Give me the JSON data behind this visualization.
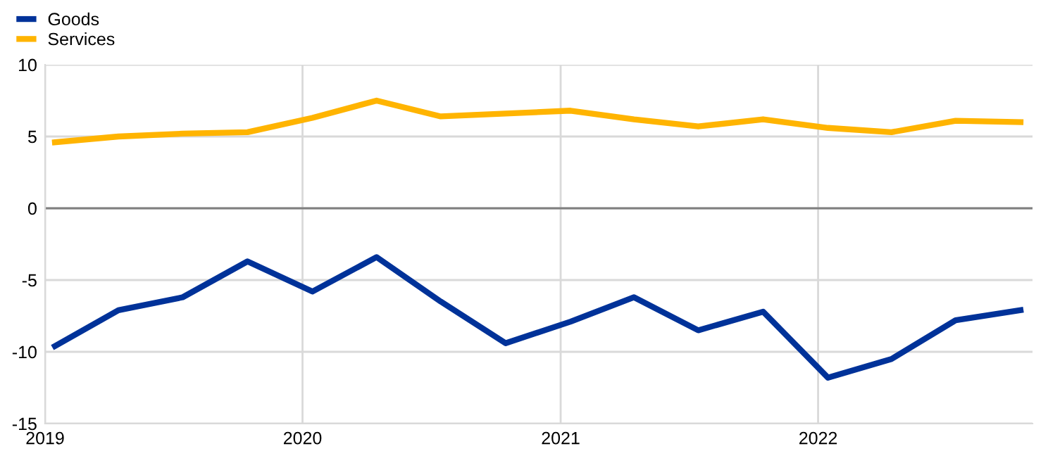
{
  "chart_data": {
    "type": "line",
    "x": [
      "2019-01-15",
      "2019-04-15",
      "2019-07-15",
      "2019-10-15",
      "2020-01-15",
      "2020-04-15",
      "2020-07-15",
      "2020-10-15",
      "2021-01-15",
      "2021-04-15",
      "2021-07-15",
      "2021-10-15",
      "2022-01-15",
      "2022-04-15",
      "2022-07-15",
      "2022-10-15"
    ],
    "series": [
      {
        "name": "Goods",
        "color": "#003299",
        "values": [
          -9.6,
          -7.1,
          -6.2,
          -3.7,
          -5.8,
          -3.4,
          -6.5,
          -9.4,
          -7.9,
          -6.2,
          -8.5,
          -7.2,
          -11.8,
          -10.5,
          -7.8,
          -7.1
        ]
      },
      {
        "name": "Services",
        "color": "#ffb400",
        "values": [
          4.6,
          5.0,
          5.2,
          5.3,
          6.3,
          7.5,
          6.4,
          6.6,
          6.8,
          6.2,
          5.7,
          6.2,
          5.6,
          5.3,
          6.1,
          6.0
        ]
      }
    ],
    "xlim": [
      "2019-01-01",
      "2022-11-01"
    ],
    "xticks": [
      {
        "value": "2019-01-01",
        "label": "2019"
      },
      {
        "value": "2020-01-01",
        "label": "2020"
      },
      {
        "value": "2021-01-01",
        "label": "2021"
      },
      {
        "value": "2022-01-01",
        "label": "2022"
      }
    ],
    "ylim": [
      -15,
      10
    ],
    "yticks": [
      -15,
      -10,
      -5,
      0,
      5,
      10
    ],
    "ref_lines": [
      {
        "axis": "y",
        "value": 0,
        "color": "#7f7f7f"
      }
    ],
    "grid": true,
    "legend": "top left",
    "marker": "none",
    "line_style": "solid"
  }
}
